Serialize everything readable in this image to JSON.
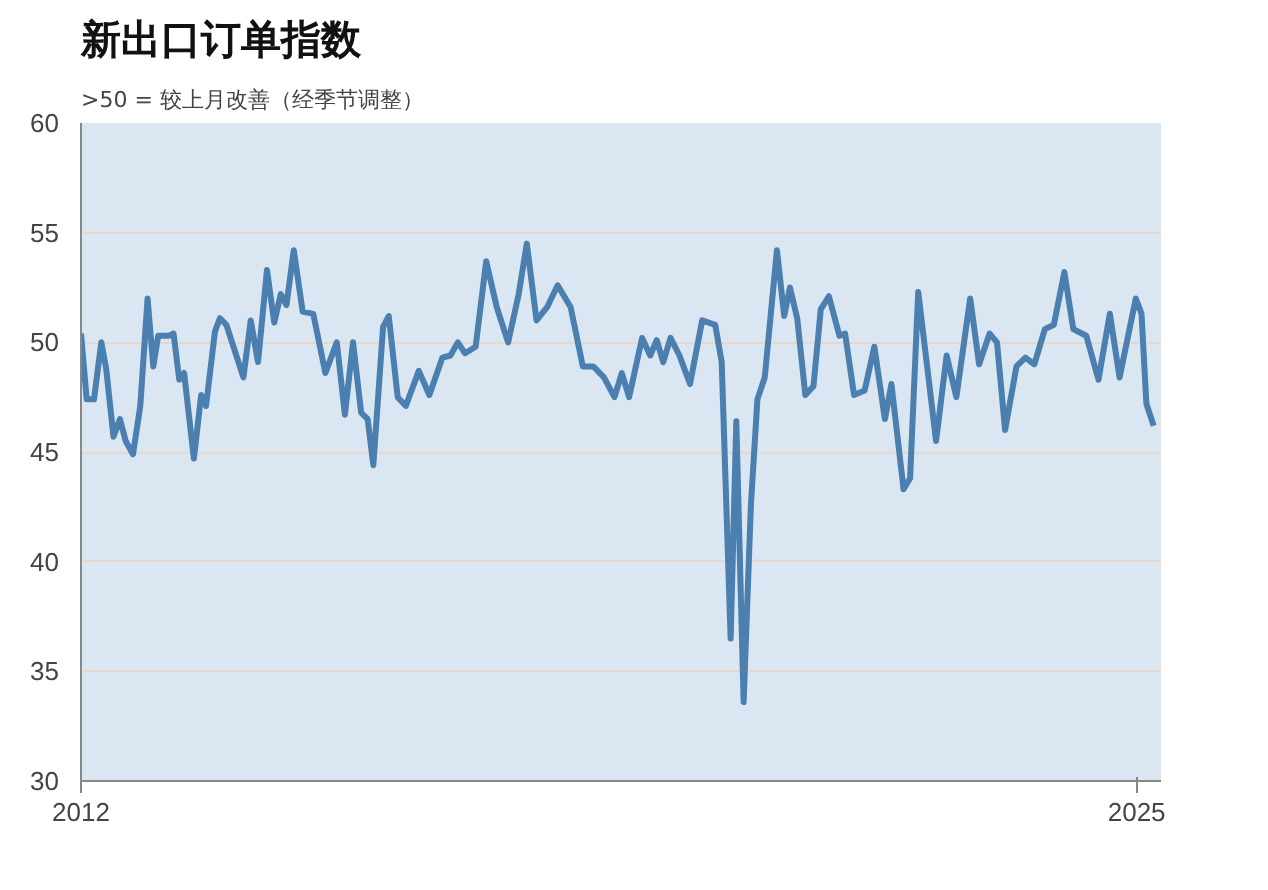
{
  "chart_data": {
    "type": "line",
    "title": "新出口订单指数",
    "subtitle": ">50 = 较上月改善（经季节调整）",
    "x": [
      2012.0,
      2012.07,
      2012.16,
      2012.25,
      2012.31,
      2012.4,
      2012.48,
      2012.55,
      2012.64,
      2012.73,
      2012.82,
      2012.89,
      2012.95,
      2013.08,
      2013.14,
      2013.21,
      2013.27,
      2013.39,
      2013.48,
      2013.54,
      2013.65,
      2013.71,
      2013.79,
      2014.0,
      2014.09,
      2014.18,
      2014.29,
      2014.38,
      2014.46,
      2014.53,
      2014.62,
      2014.73,
      2014.86,
      2015.01,
      2015.15,
      2015.25,
      2015.35,
      2015.45,
      2015.53,
      2015.6,
      2015.72,
      2015.79,
      2015.9,
      2016.0,
      2016.16,
      2016.29,
      2016.45,
      2016.55,
      2016.64,
      2016.73,
      2016.86,
      2016.99,
      2017.12,
      2017.26,
      2017.39,
      2017.49,
      2017.61,
      2017.74,
      2017.87,
      2018.03,
      2018.18,
      2018.31,
      2018.44,
      2018.57,
      2018.66,
      2018.75,
      2018.91,
      2019.01,
      2019.09,
      2019.17,
      2019.26,
      2019.37,
      2019.5,
      2019.65,
      2019.81,
      2019.89,
      2020.0,
      2020.07,
      2020.16,
      2020.25,
      2020.33,
      2020.42,
      2020.57,
      2020.66,
      2020.73,
      2020.82,
      2020.92,
      2021.02,
      2021.11,
      2021.21,
      2021.34,
      2021.41,
      2021.52,
      2021.65,
      2021.77,
      2021.9,
      2021.98,
      2022.13,
      2022.21,
      2022.31,
      2022.42,
      2022.53,
      2022.66,
      2022.78,
      2022.95,
      2023.06,
      2023.19,
      2023.28,
      2023.38,
      2023.52,
      2023.63,
      2023.74,
      2023.87,
      2023.98,
      2024.11,
      2024.22,
      2024.38,
      2024.53,
      2024.67,
      2024.79,
      2024.99,
      2025.06,
      2025.12,
      2025.21
    ],
    "series": [
      {
        "color": "#4a7fb0",
        "values": [
          50.4,
          47.4,
          47.4,
          50.0,
          48.8,
          45.7,
          46.5,
          45.5,
          44.9,
          47.1,
          52.0,
          48.9,
          50.3,
          50.3,
          50.4,
          48.3,
          48.6,
          44.7,
          47.6,
          47.1,
          50.5,
          51.1,
          50.8,
          48.4,
          51.0,
          49.1,
          53.3,
          50.9,
          52.2,
          51.7,
          54.2,
          51.4,
          51.3,
          48.6,
          50.0,
          46.7,
          50.0,
          46.8,
          46.5,
          44.4,
          50.7,
          51.2,
          47.5,
          47.1,
          48.7,
          47.6,
          49.3,
          49.4,
          50.0,
          49.5,
          49.8,
          53.7,
          51.6,
          50.0,
          52.2,
          54.5,
          51.0,
          51.6,
          52.6,
          51.6,
          48.9,
          48.9,
          48.4,
          47.5,
          48.6,
          47.5,
          50.2,
          49.4,
          50.1,
          49.1,
          50.2,
          49.4,
          48.1,
          51.0,
          50.8,
          49.1,
          36.5,
          46.4,
          33.6,
          42.6,
          47.4,
          48.4,
          54.2,
          51.2,
          52.5,
          51.1,
          47.6,
          48.0,
          51.5,
          52.1,
          50.3,
          50.4,
          47.6,
          47.8,
          49.8,
          46.5,
          48.1,
          43.3,
          43.8,
          52.3,
          48.9,
          45.5,
          49.4,
          47.5,
          52.0,
          49.0,
          50.4,
          50.0,
          46.0,
          48.9,
          49.3,
          49.0,
          50.6,
          50.8,
          53.2,
          50.6,
          50.3,
          48.3,
          51.3,
          48.4,
          52.0,
          51.3,
          47.2,
          46.2
        ]
      }
    ],
    "xlim": [
      2012,
      2025.3
    ],
    "xticks": [
      2012,
      2025
    ],
    "ylim": [
      30,
      60
    ],
    "yticks": [
      30,
      35,
      40,
      45,
      50,
      55,
      60
    ],
    "grid": "y",
    "marker": "none",
    "line_style": "solid"
  }
}
